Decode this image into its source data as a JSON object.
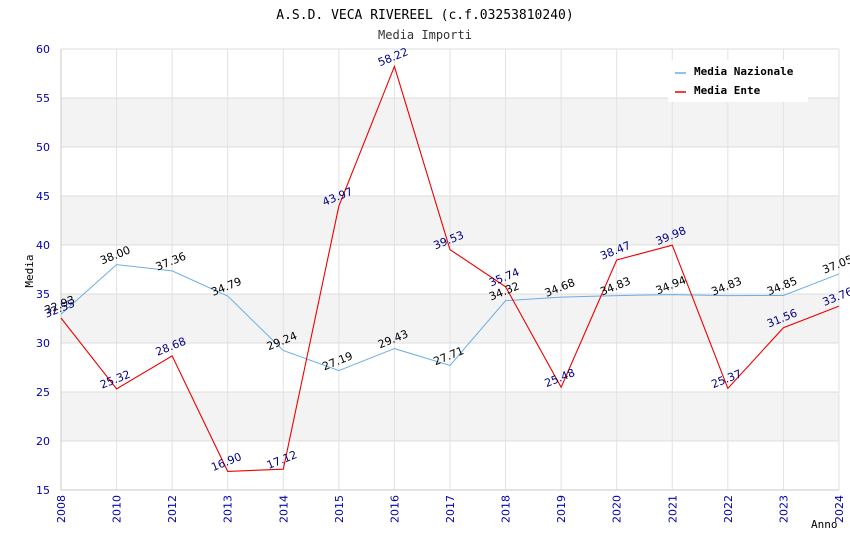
{
  "chart_data": {
    "type": "line",
    "title": "A.S.D. VECA RIVEREEL (c.f.03253810240)",
    "subtitle": "Media Importi",
    "xlabel": "Anno",
    "ylabel": "Media",
    "ylim": [
      15,
      60
    ],
    "yticks": [
      "15",
      "20",
      "25",
      "30",
      "35",
      "40",
      "45",
      "50",
      "55",
      "60"
    ],
    "categories": [
      "2008",
      "2010",
      "2012",
      "2013",
      "2014",
      "2015",
      "2016",
      "2017",
      "2018",
      "2019",
      "2020",
      "2021",
      "2022",
      "2023",
      "2024"
    ],
    "legend_position": "top-right",
    "series": [
      {
        "name": "Media Nazionale",
        "color": "#6aaee8",
        "label_color": "#000000",
        "values": [
          32.93,
          38.0,
          37.36,
          34.79,
          29.24,
          27.19,
          29.43,
          27.71,
          34.32,
          34.68,
          34.83,
          34.94,
          34.83,
          34.85,
          37.05
        ],
        "labels": [
          "32.93",
          "38.00",
          "37.36",
          "34.79",
          "29.24",
          "27.19",
          "29.43",
          "27.71",
          "34.32",
          "34.68",
          "34.83",
          "34.94",
          "34.83",
          "34.85",
          "37.05"
        ]
      },
      {
        "name": "Media Ente",
        "color": "#ee0000",
        "label_color": "#000080",
        "values": [
          32.55,
          25.32,
          28.68,
          16.9,
          17.12,
          43.97,
          58.22,
          39.53,
          35.74,
          25.48,
          38.47,
          39.98,
          25.37,
          31.56,
          33.76
        ],
        "labels": [
          "32.55",
          "25.32",
          "28.68",
          "16.90",
          "17.12",
          "43.97",
          "58.22",
          "39.53",
          "35.74",
          "25.48",
          "38.47",
          "39.98",
          "25.37",
          "31.56",
          "33.76"
        ]
      }
    ]
  }
}
